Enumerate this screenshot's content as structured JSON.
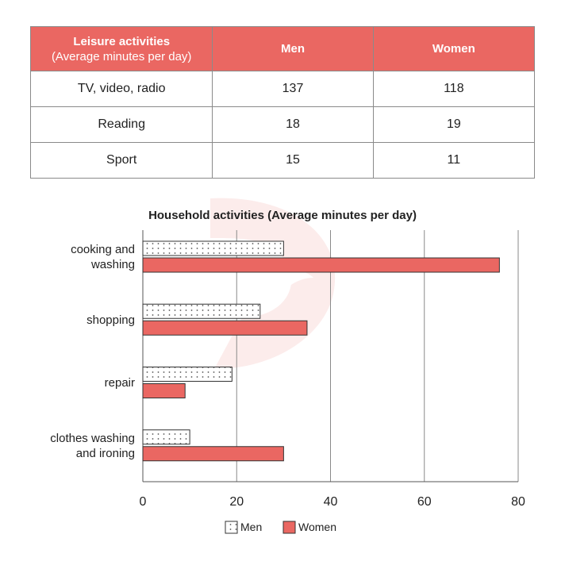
{
  "table": {
    "headers": {
      "activity": "Leisure activities",
      "activity_sub": "(Average minutes per day)",
      "men": "Men",
      "women": "Women"
    },
    "rows": [
      {
        "activity": "TV, video, radio",
        "men": "137",
        "women": "118"
      },
      {
        "activity": "Reading",
        "men": "18",
        "women": "19"
      },
      {
        "activity": "Sport",
        "men": "15",
        "women": "11"
      }
    ]
  },
  "colors": {
    "accent": "#ea6762",
    "bar_outline": "#333333",
    "gridline": "#8a8a8a"
  },
  "chart_data": {
    "type": "bar",
    "orientation": "horizontal",
    "title": "Household activities (Average minutes per day)",
    "categories": [
      [
        "cooking and",
        "washing"
      ],
      [
        "shopping"
      ],
      [
        "repair"
      ],
      [
        "clothes washing",
        "and ironing"
      ]
    ],
    "series": [
      {
        "name": "Men",
        "values": [
          30,
          25,
          19,
          10
        ],
        "pattern": "dotted",
        "color": "#ffffff"
      },
      {
        "name": "Women",
        "values": [
          76,
          35,
          9,
          30
        ],
        "pattern": "solid",
        "color": "#ea6762"
      }
    ],
    "xlim": [
      0,
      80
    ],
    "xticks": [
      0,
      20,
      40,
      60,
      80
    ],
    "grid": true,
    "legend": "bottom-center"
  }
}
